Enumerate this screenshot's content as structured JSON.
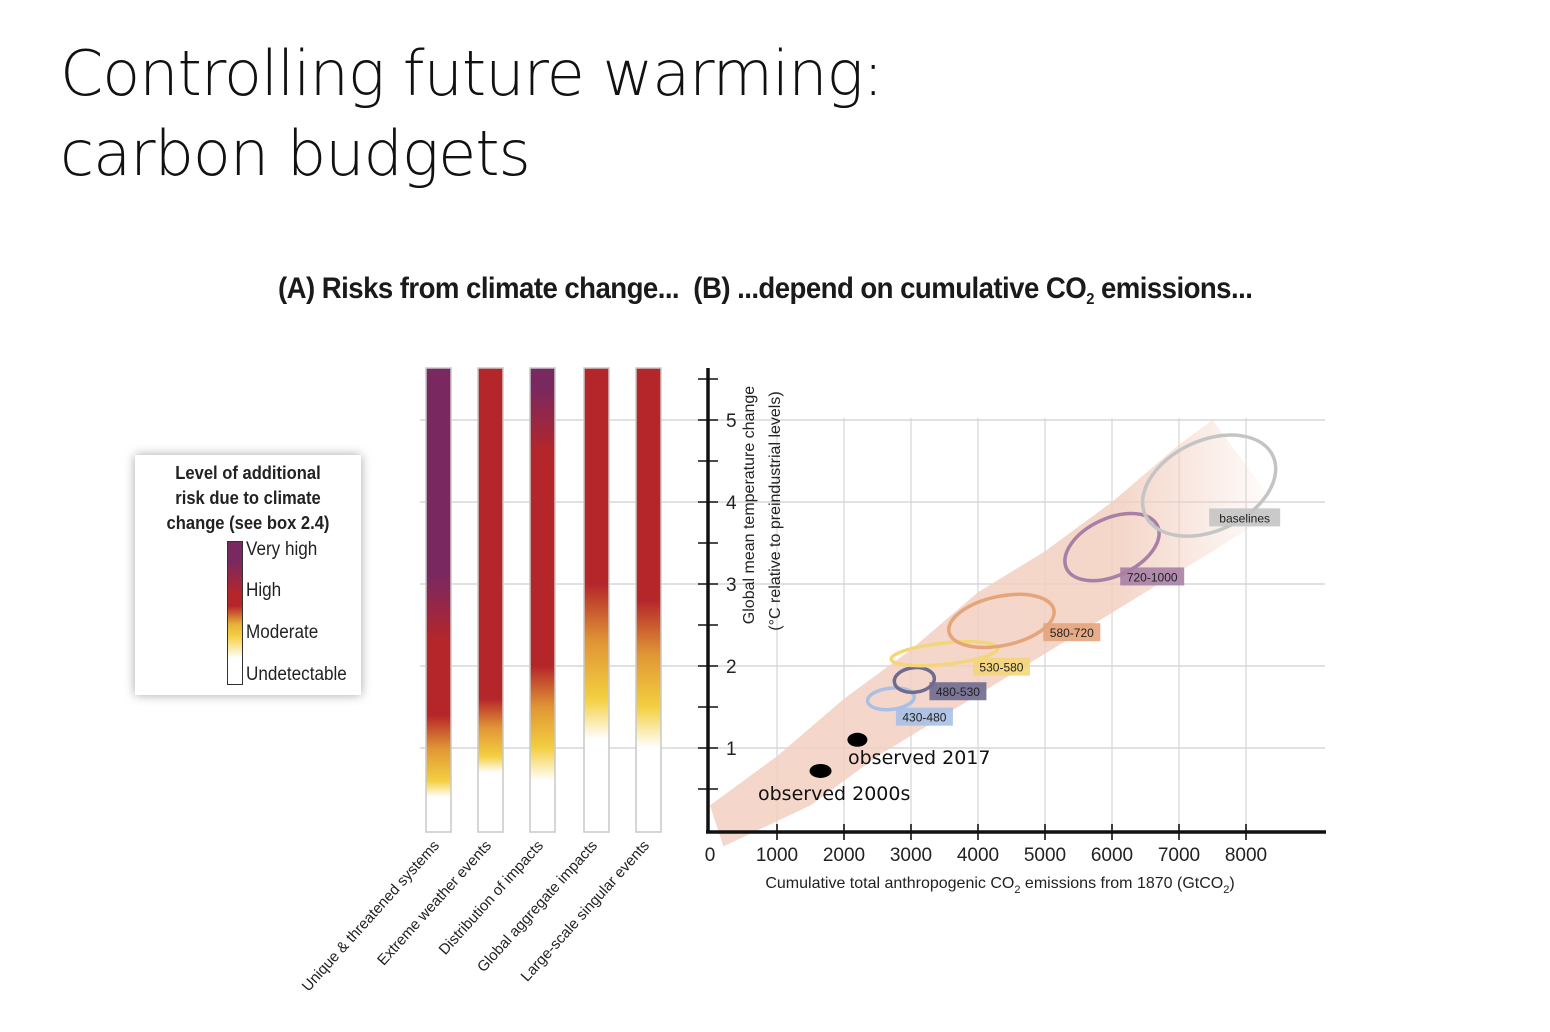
{
  "slide": {
    "title_line1": "Controlling future warming:",
    "title_line2": "carbon budgets"
  },
  "panel_heading": {
    "part_a": "(A) Risks from climate change...",
    "part_b_pre": "(B) ...depend on cumulative CO",
    "part_b_sub": "2",
    "part_b_post": " emissions..."
  },
  "legend": {
    "title_lines": [
      "Level of additional",
      "risk due to climate",
      "change (see box 2.4)"
    ],
    "levels": [
      "Very high",
      "High",
      "Moderate",
      "Undetectable"
    ],
    "colors": {
      "very_high": "#7a2860",
      "high": "#b5262a",
      "moderate": "#f3cf40",
      "undetectable": "#ffffff"
    }
  },
  "chart_data": [
    {
      "type": "heatmap",
      "title": "(A) Risks from climate change...",
      "ylabel": "Global mean temperature change (°C relative to preindustrial levels)",
      "ylim": [
        0,
        5.6
      ],
      "categories": [
        "Unique & threatened systems",
        "Extreme weather events",
        "Distribution of impacts",
        "Global aggregate impacts",
        "Large-scale singular events"
      ],
      "risk_transitions_degC": [
        {
          "category": "Unique & threatened systems",
          "undetectable_below": 0.4,
          "moderate_from": 0.6,
          "high_from": 1.4,
          "very_high_from": 2.3
        },
        {
          "category": "Extreme weather events",
          "undetectable_below": 0.7,
          "moderate_from": 0.9,
          "high_from": 1.6,
          "very_high_from": null
        },
        {
          "category": "Distribution of impacts",
          "undetectable_below": 0.6,
          "moderate_from": 1.0,
          "high_from": 2.0,
          "very_high_from": 4.6
        },
        {
          "category": "Global aggregate impacts",
          "undetectable_below": 1.1,
          "moderate_from": 1.6,
          "high_from": 3.0,
          "very_high_from": null
        },
        {
          "category": "Large-scale singular events",
          "undetectable_below": 1.0,
          "moderate_from": 1.5,
          "high_from": 2.8,
          "very_high_from": null
        }
      ]
    },
    {
      "type": "scatter",
      "title": "(B) ...depend on cumulative CO2 emissions...",
      "xlabel_pre": "Cumulative total anthropogenic CO",
      "xlabel_sub": "2",
      "xlabel_mid": " emissions from 1870 (GtCO",
      "xlabel_sub2": "2",
      "xlabel_post": ")",
      "ylabel_line1": "Global mean temperature change",
      "ylabel_line2": "(°C relative to preindustrial levels)",
      "xlim": [
        0,
        9200
      ],
      "ylim": [
        0,
        5.6
      ],
      "x_ticks": [
        0,
        1000,
        2000,
        3000,
        4000,
        5000,
        6000,
        7000,
        8000
      ],
      "y_ticks": [
        1,
        2,
        3,
        4,
        5
      ],
      "grid": true,
      "uncertainty_band": {
        "color": "#f2cfc0",
        "upper": [
          [
            0,
            0.3
          ],
          [
            1000,
            0.9
          ],
          [
            2000,
            1.6
          ],
          [
            3000,
            2.2
          ],
          [
            4000,
            2.9
          ],
          [
            5000,
            3.4
          ],
          [
            6000,
            4.0
          ],
          [
            7000,
            4.7
          ],
          [
            7500,
            5.0
          ]
        ],
        "lower": [
          [
            200,
            -0.2
          ],
          [
            1500,
            0.3
          ],
          [
            2500,
            0.9
          ],
          [
            3500,
            1.4
          ],
          [
            4500,
            1.9
          ],
          [
            5500,
            2.4
          ],
          [
            6500,
            2.9
          ],
          [
            7500,
            3.4
          ],
          [
            8500,
            3.9
          ]
        ]
      },
      "scenarios": [
        {
          "name": "430-480",
          "color": "#a9c0e6",
          "center": [
            2700,
            1.6
          ],
          "x_halfwidth": 350,
          "y_halfheight": 0.13,
          "label_at": [
            3200,
            1.37
          ]
        },
        {
          "name": "480-530",
          "color": "#6e6a90",
          "center": [
            3050,
            1.83
          ],
          "x_halfwidth": 300,
          "y_halfheight": 0.15,
          "label_at": [
            3700,
            1.68
          ]
        },
        {
          "name": "530-580",
          "color": "#f4d67a",
          "center": [
            3500,
            2.15
          ],
          "x_halfwidth": 800,
          "y_halfheight": 0.13,
          "label_at": [
            4350,
            1.98
          ]
        },
        {
          "name": "580-720",
          "color": "#e6a47b",
          "center": [
            4350,
            2.55
          ],
          "x_halfwidth": 800,
          "y_halfheight": 0.3,
          "label_at": [
            5400,
            2.4
          ]
        },
        {
          "name": "720-1000",
          "color": "#a97fa6",
          "center": [
            6000,
            3.45
          ],
          "x_halfwidth": 750,
          "y_halfheight": 0.35,
          "label_at": [
            6600,
            3.08
          ]
        },
        {
          "name": "baselines",
          "color": "#c4c4c4",
          "center": [
            7450,
            4.2
          ],
          "x_halfwidth": 1050,
          "y_halfheight": 0.55,
          "label_at": [
            7980,
            3.8
          ]
        }
      ],
      "observations": [
        {
          "name": "observed 2000s",
          "x": 1650,
          "y": 0.72
        },
        {
          "name": "observed 2017",
          "x": 2200,
          "y": 1.1
        }
      ]
    }
  ]
}
